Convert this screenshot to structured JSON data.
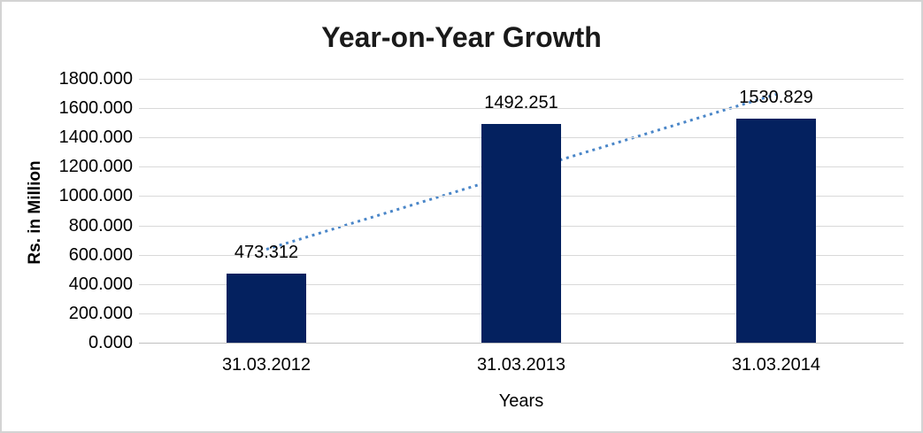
{
  "chart_data": {
    "type": "bar",
    "title": "Year-on-Year Growth",
    "xlabel": "Years",
    "ylabel": "Rs. in Million",
    "categories": [
      "31.03.2012",
      "31.03.2013",
      "31.03.2014"
    ],
    "values": [
      473.312,
      1492.251,
      1530.829
    ],
    "data_labels": [
      "473.312",
      "1492.251",
      "1530.829"
    ],
    "ylim": [
      0,
      1800
    ],
    "ytick_step": 200,
    "yticks": [
      "0.000",
      "200.000",
      "400.000",
      "600.000",
      "800.000",
      "1000.000",
      "1200.000",
      "1400.000",
      "1600.000",
      "1800.000"
    ],
    "grid": "horizontal",
    "legend": "none",
    "trendline": {
      "type": "linear",
      "style": "dotted"
    },
    "colors": {
      "bar": "#04215f",
      "trendline": "#4a86c8",
      "gridline": "#d9d9d9",
      "axis_line": "#bfbfbf",
      "title_text": "#1a1a1a",
      "tick_text": "#000000",
      "frame_border": "#d3d3d3"
    }
  }
}
